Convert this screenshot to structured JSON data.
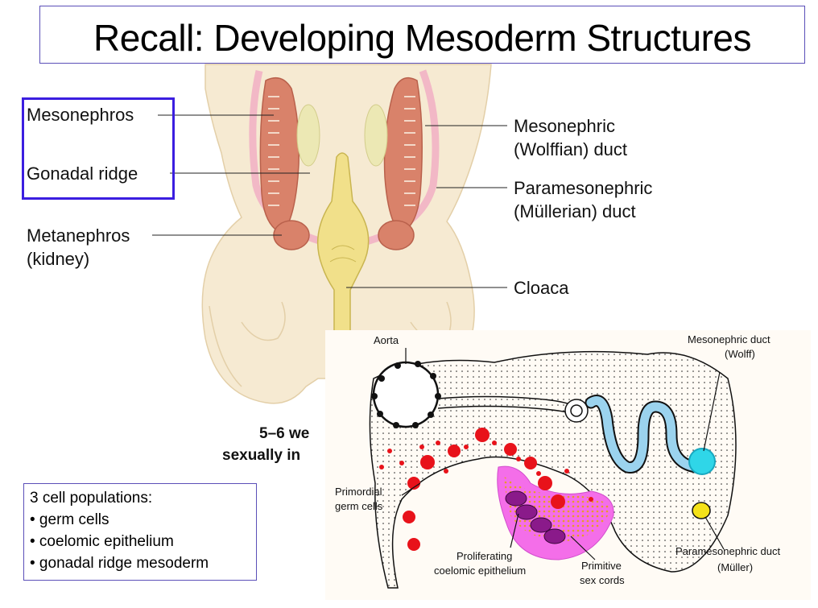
{
  "title": "Recall: Developing Mesoderm Structures",
  "left_labels": {
    "mesonephros": "Mesonephros",
    "gonadal_ridge": "Gonadal ridge",
    "metanephros_line1": "Metanephros",
    "metanephros_line2": "(kidney)"
  },
  "right_labels": {
    "mesonephric_line1": "Mesonephric",
    "mesonephric_line2": "(Wolffian) duct",
    "paramesonephric_line1": "Paramesonephric",
    "paramesonephric_line2": "(Müllerian) duct",
    "cloaca": "Cloaca"
  },
  "subtitle": {
    "line1": "5–6 we",
    "line2": "sexually in"
  },
  "info_box": {
    "heading": "3 cell populations:",
    "items": [
      "• germ cells",
      "• coelomic epithelium",
      "• gonadal ridge mesoderm"
    ]
  },
  "inset": {
    "aorta": "Aorta",
    "mesonephric_duct_line1": "Mesonephric duct",
    "mesonephric_duct_line2": "(Wolff)",
    "primordial_line1": "Primordial",
    "primordial_line2": "germ cells",
    "proliferating_line1": "Proliferating",
    "proliferating_line2": "coelomic epithelium",
    "primitive_line1": "Primitive",
    "primitive_line2": "sex cords",
    "paramesonephric_duct_line1": "Paramesonephric duct",
    "paramesonephric_duct_line2": "(Müller)"
  },
  "colors": {
    "title_border": "#5b4fb8",
    "highlight_box": "#3b1ee0",
    "tissue": "#f6ead2",
    "mesonephros": "#d9826a",
    "gonad": "#ece8b4",
    "duct_pink": "#f2b8c6",
    "cloaca": "#f1e08a",
    "germ_cells": "#e8121a",
    "epithelium": "#f46ee9",
    "sex_cords": "#8a1a8a",
    "wolffian_duct": "#9bd3ee",
    "mullerian_duct": "#f4e21a"
  }
}
